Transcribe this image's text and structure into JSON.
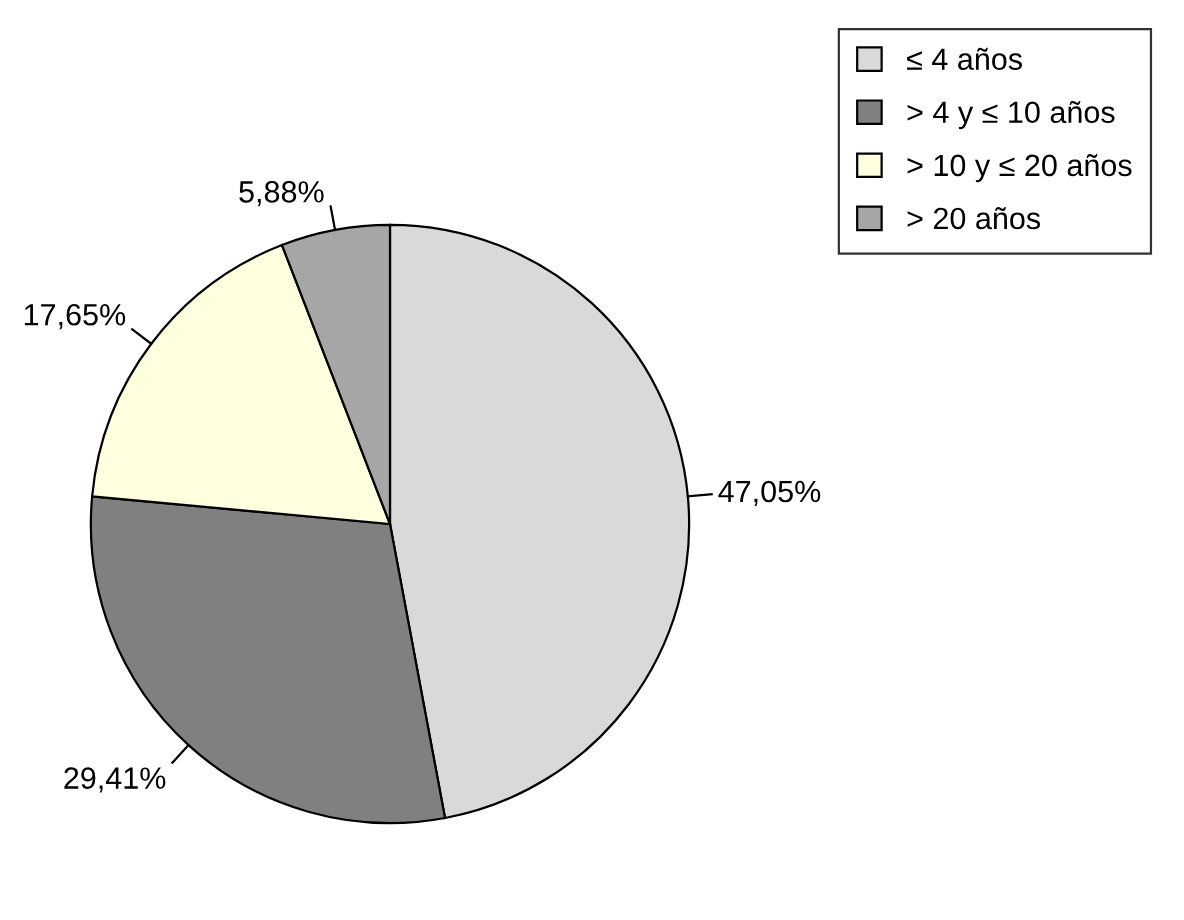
{
  "chart_data": {
    "type": "pie",
    "categories": [
      "≤ 4 años",
      "> 4 y ≤ 10 años",
      "> 10 y ≤ 20 años",
      "> 20 años"
    ],
    "values": [
      47.05,
      29.41,
      17.65,
      5.88
    ],
    "value_labels": [
      "47,05%",
      "29,41%",
      "17,65%",
      "5,88%"
    ],
    "colors": [
      "#d9d9d9",
      "#808080",
      "#ffffe0",
      "#a6a6a6"
    ],
    "legend": "top right"
  }
}
